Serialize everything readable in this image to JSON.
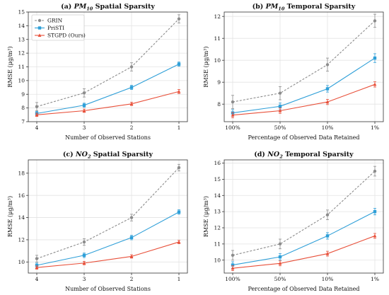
{
  "legend": [
    "GRIN",
    "PriSTI",
    "STGPD (Ours)"
  ],
  "colors": {
    "GRIN": "#8c8c8c",
    "PriSTI": "#2e9fd8",
    "STGPD (Ours)": "#e8503a"
  },
  "chart_data": [
    {
      "type": "line",
      "title": "(a) PM10 Spatial Sparsity",
      "title_parts": [
        "(a) ",
        "PM",
        "10",
        " Spatial Sparsity"
      ],
      "xlabel": "Number of Observed Stations",
      "ylabel": "RMSE (μg/m³)",
      "categories": [
        "4",
        "3",
        "2",
        "1"
      ],
      "ylim": [
        7,
        15
      ],
      "yticks": [
        7,
        8,
        9,
        10,
        11,
        12,
        13,
        14,
        15
      ],
      "series": [
        {
          "name": "GRIN",
          "values": [
            8.1,
            9.1,
            11.0,
            14.5
          ],
          "err": [
            0.3,
            0.3,
            0.3,
            0.3
          ]
        },
        {
          "name": "PriSTI",
          "values": [
            7.6,
            8.2,
            9.5,
            11.2
          ],
          "err": [
            0.15,
            0.15,
            0.15,
            0.15
          ]
        },
        {
          "name": "STGPD (Ours)",
          "values": [
            7.5,
            7.8,
            8.3,
            9.2
          ],
          "err": [
            0.12,
            0.12,
            0.12,
            0.15
          ]
        }
      ],
      "legend": true
    },
    {
      "type": "line",
      "title": "(b) PM10 Temporal Sparsity",
      "title_parts": [
        "(b) ",
        "PM",
        "10",
        " Temporal Sparsity"
      ],
      "xlabel": "Percentage of Observed Data Retained",
      "ylabel": "RMSE (μg/m³)",
      "categories": [
        "100%",
        "50%",
        "10%",
        "1%"
      ],
      "ylim": [
        7.2,
        12.2
      ],
      "yticks": [
        8,
        9,
        10,
        11,
        12
      ],
      "series": [
        {
          "name": "GRIN",
          "values": [
            8.1,
            8.5,
            9.8,
            11.8
          ],
          "err": [
            0.3,
            0.3,
            0.3,
            0.3
          ]
        },
        {
          "name": "PriSTI",
          "values": [
            7.6,
            7.9,
            8.7,
            10.1
          ],
          "err": [
            0.15,
            0.15,
            0.15,
            0.2
          ]
        },
        {
          "name": "STGPD (Ours)",
          "values": [
            7.5,
            7.7,
            8.1,
            8.9
          ],
          "err": [
            0.12,
            0.12,
            0.12,
            0.12
          ]
        }
      ],
      "legend": false
    },
    {
      "type": "line",
      "title": "(c) NO2 Spatial Sparsity",
      "title_parts": [
        "(c) ",
        "NO",
        "2",
        " Spatial Sparsity"
      ],
      "xlabel": "Number of Observed Stations",
      "ylabel": "RMSE (μg/m³)",
      "categories": [
        "4",
        "3",
        "2",
        "1"
      ],
      "ylim": [
        9,
        19.2
      ],
      "yticks": [
        10,
        12,
        14,
        16,
        18
      ],
      "series": [
        {
          "name": "GRIN",
          "values": [
            10.3,
            11.8,
            14.0,
            18.5
          ],
          "err": [
            0.3,
            0.3,
            0.3,
            0.3
          ]
        },
        {
          "name": "PriSTI",
          "values": [
            9.7,
            10.6,
            12.2,
            14.5
          ],
          "err": [
            0.2,
            0.2,
            0.2,
            0.2
          ]
        },
        {
          "name": "STGPD (Ours)",
          "values": [
            9.5,
            9.9,
            10.5,
            11.8
          ],
          "err": [
            0.15,
            0.15,
            0.15,
            0.15
          ]
        }
      ],
      "legend": false
    },
    {
      "type": "line",
      "title": "(d) NO2 Temporal Sparsity",
      "title_parts": [
        "(d) ",
        "NO",
        "2",
        " Temporal Sparsity"
      ],
      "xlabel": "Percentage of Observed Data Retained",
      "ylabel": "RMSE (μg/m³)",
      "categories": [
        "100%",
        "50%",
        "10%",
        "1%"
      ],
      "ylim": [
        9.2,
        16.2
      ],
      "yticks": [
        10,
        11,
        12,
        13,
        14,
        15,
        16
      ],
      "series": [
        {
          "name": "GRIN",
          "values": [
            10.3,
            11.0,
            12.8,
            15.5
          ],
          "err": [
            0.3,
            0.3,
            0.3,
            0.3
          ]
        },
        {
          "name": "PriSTI",
          "values": [
            9.7,
            10.2,
            11.5,
            13.0
          ],
          "err": [
            0.2,
            0.2,
            0.2,
            0.2
          ]
        },
        {
          "name": "STGPD (Ours)",
          "values": [
            9.5,
            9.8,
            10.4,
            11.5
          ],
          "err": [
            0.15,
            0.15,
            0.15,
            0.15
          ]
        }
      ],
      "legend": false
    }
  ]
}
